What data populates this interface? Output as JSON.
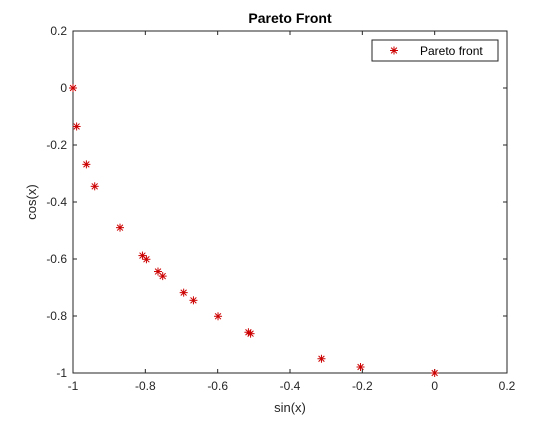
{
  "chart_data": {
    "type": "scatter",
    "title": "Pareto Front",
    "xlabel": "sin(x)",
    "ylabel": "cos(x)",
    "xlim": [
      -1,
      0.2
    ],
    "ylim": [
      -1,
      0.2
    ],
    "xticks": [
      -1,
      -0.8,
      -0.6,
      -0.4,
      -0.2,
      0,
      0.2
    ],
    "yticks": [
      -1,
      -0.8,
      -0.6,
      -0.4,
      -0.2,
      0,
      0.2
    ],
    "xtick_labels": [
      "-1",
      "-0.8",
      "-0.6",
      "-0.4",
      "-0.2",
      "0",
      "0.2"
    ],
    "ytick_labels": [
      "-1",
      "-0.8",
      "-0.6",
      "-0.4",
      "-0.2",
      "0",
      "0.2"
    ],
    "grid": false,
    "legend_position": "top-right",
    "series": [
      {
        "name": "Pareto front",
        "marker": "asterisk",
        "color": "#cc0000",
        "x": [
          -1.0,
          -0.99,
          -0.963,
          -0.94,
          -0.87,
          -0.808,
          -0.797,
          -0.765,
          -0.752,
          -0.694,
          -0.667,
          -0.599,
          -0.515,
          -0.509,
          -0.313,
          -0.205,
          0.0
        ],
        "y": [
          0.0,
          -0.135,
          -0.268,
          -0.345,
          -0.49,
          -0.588,
          -0.601,
          -0.644,
          -0.66,
          -0.718,
          -0.745,
          -0.801,
          -0.857,
          -0.862,
          -0.95,
          -0.979,
          -1.0
        ]
      }
    ]
  }
}
